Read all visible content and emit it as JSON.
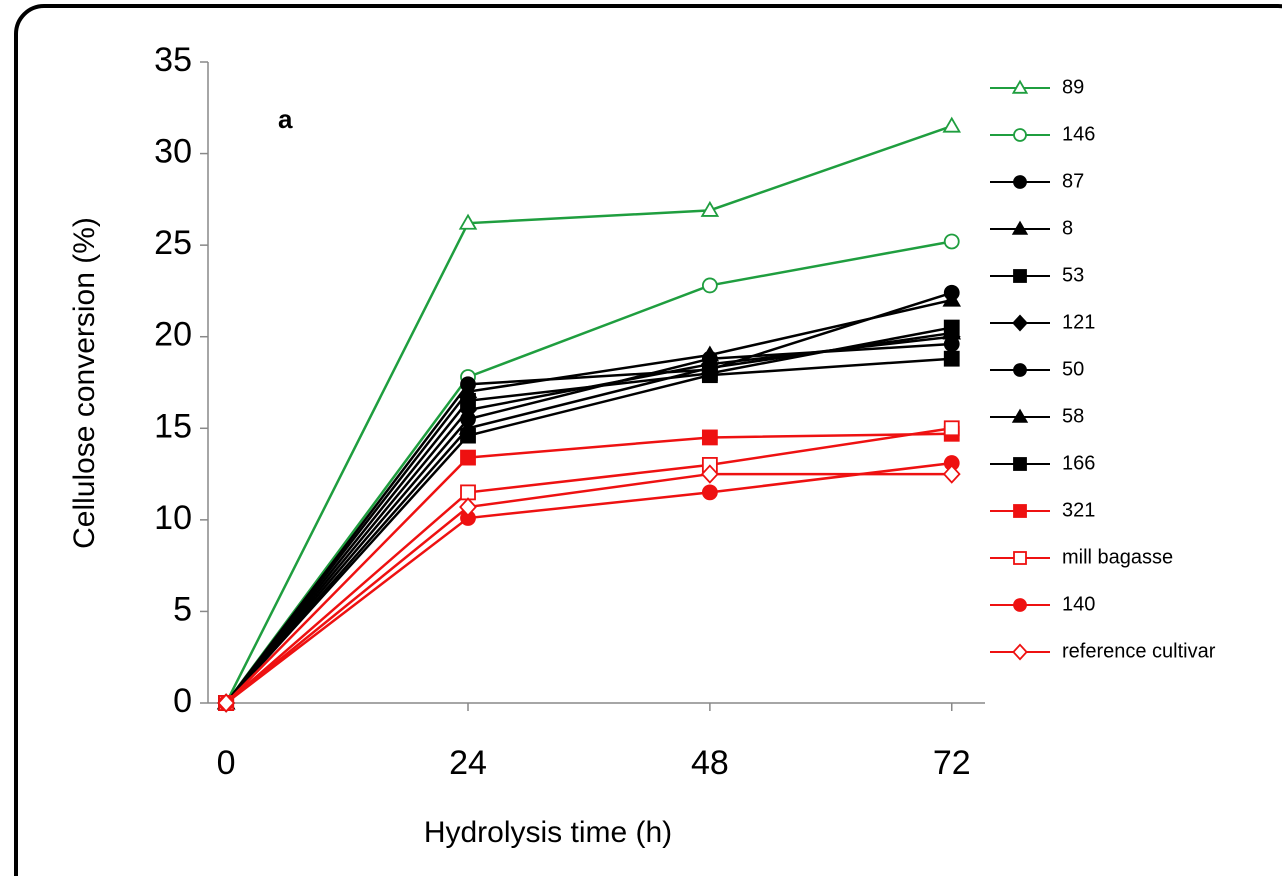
{
  "chart_data": {
    "type": "line",
    "panel_label": "a",
    "x_label": "Hydrolysis time (h)",
    "y_label": "Cellulose conversion (%)",
    "x": [
      0,
      24,
      48,
      72
    ],
    "xlim": [
      -1.8,
      75.3
    ],
    "xticks": [
      0,
      24,
      48,
      72
    ],
    "ylim": [
      0,
      35
    ],
    "yticks": [
      0,
      5,
      10,
      15,
      20,
      25,
      30,
      35
    ],
    "series": [
      {
        "name": "89",
        "color": "#1f9e3f",
        "marker": "triangle-open",
        "values": [
          0,
          26.2,
          26.9,
          31.5
        ]
      },
      {
        "name": "146",
        "color": "#1f9e3f",
        "marker": "circle-open",
        "values": [
          0,
          17.8,
          22.8,
          25.2
        ]
      },
      {
        "name": "87",
        "color": "#000000",
        "marker": "circle",
        "values": [
          0,
          17.4,
          18.2,
          22.4
        ]
      },
      {
        "name": "8",
        "color": "#000000",
        "marker": "triangle",
        "values": [
          0,
          17.0,
          19.0,
          22.0
        ]
      },
      {
        "name": "53",
        "color": "#000000",
        "marker": "square",
        "values": [
          0,
          16.5,
          18.0,
          20.5
        ]
      },
      {
        "name": "121",
        "color": "#000000",
        "marker": "diamond",
        "values": [
          0,
          16.0,
          18.5,
          20.0
        ]
      },
      {
        "name": "50",
        "color": "#000000",
        "marker": "circle",
        "values": [
          0,
          15.5,
          18.8,
          19.6
        ]
      },
      {
        "name": "58",
        "color": "#000000",
        "marker": "triangle",
        "values": [
          0,
          15.0,
          18.3,
          20.2
        ]
      },
      {
        "name": "166",
        "color": "#000000",
        "marker": "square",
        "values": [
          0,
          14.6,
          17.9,
          18.8
        ]
      },
      {
        "name": "321",
        "color": "#ee1111",
        "marker": "square",
        "values": [
          0,
          13.4,
          14.5,
          14.7
        ]
      },
      {
        "name": "mill bagasse",
        "color": "#ee1111",
        "marker": "square-open",
        "values": [
          0,
          11.5,
          13.0,
          15.0
        ]
      },
      {
        "name": "140",
        "color": "#ee1111",
        "marker": "circle",
        "values": [
          0,
          10.1,
          11.5,
          13.1
        ]
      },
      {
        "name": "reference cultivar",
        "color": "#ee1111",
        "marker": "diamond-open",
        "values": [
          0,
          10.7,
          12.5,
          12.5
        ]
      }
    ]
  }
}
